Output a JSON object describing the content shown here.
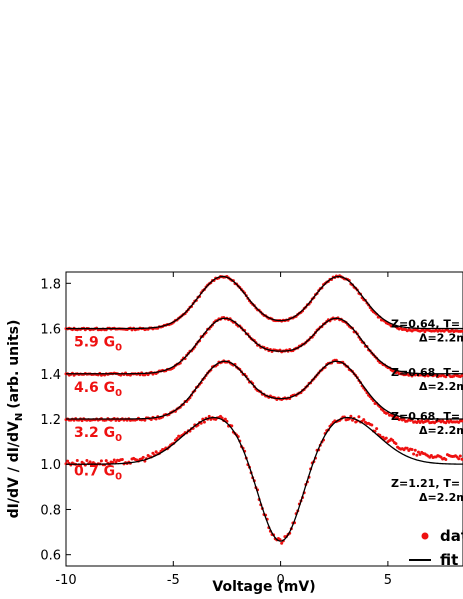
{
  "chart_data": {
    "type": "line",
    "xlabel": "Voltage (mV)",
    "ylabel": "dI/dV / dI/dV",
    "ylabel_sub": "N",
    "ylabel_units": "(arb. units)",
    "xlim": [
      -10,
      8.5
    ],
    "ylim": [
      0.55,
      1.85
    ],
    "xticks": [
      -10,
      -5,
      0,
      5
    ],
    "yticks": [
      0.6,
      0.8,
      1.0,
      1.2,
      1.4,
      1.6,
      1.8
    ],
    "xtick_labels": [
      "-10",
      "-5",
      "0",
      "5"
    ],
    "ytick_labels": [
      "0.6",
      "0.8",
      "1.0",
      "1.2",
      "1.4",
      "1.6",
      "1.8"
    ],
    "colors": {
      "data": "#ee1111",
      "fit": "#000000"
    },
    "legend": {
      "position": "bottom-right",
      "data_label": "dat",
      "fit_label": "fit"
    },
    "series": [
      {
        "conductance": "5.9 G",
        "conductance_sub": "0",
        "params_line1": "Z=0.64, T=",
        "params_line2": "Δ=2.2m",
        "curve": {
          "base": 1.6,
          "dip": 1.635,
          "peak": 1.83,
          "peak_x": 2.7,
          "width": 1.0,
          "noise": 0.004,
          "data_shift": -0.01
        }
      },
      {
        "conductance": "4.6 G",
        "conductance_sub": "0",
        "params_line1": "Z=0.68, T=",
        "params_line2": "Δ=2.2m",
        "curve": {
          "base": 1.4,
          "dip": 1.5,
          "peak": 1.645,
          "peak_x": 2.6,
          "width": 1.05,
          "noise": 0.005,
          "data_shift": -0.008
        }
      },
      {
        "conductance": "3.2 G",
        "conductance_sub": "0",
        "params_line1": "Z=0.68, T=",
        "params_line2": "Δ=2.2m",
        "curve": {
          "base": 1.2,
          "dip": 1.29,
          "peak": 1.455,
          "peak_x": 2.6,
          "width": 1.05,
          "noise": 0.005,
          "data_shift": -0.012
        }
      },
      {
        "conductance": "0.7 G",
        "conductance_sub": "0",
        "params_line1": "Z=1.21, T=",
        "params_line2": "Δ=2.2m",
        "curve": {
          "base": 1.0,
          "dip": 0.66,
          "peak": 1.21,
          "peak_x": 3.0,
          "width": 1.35,
          "noise": 0.012,
          "data_shift": 0.03
        }
      }
    ]
  }
}
